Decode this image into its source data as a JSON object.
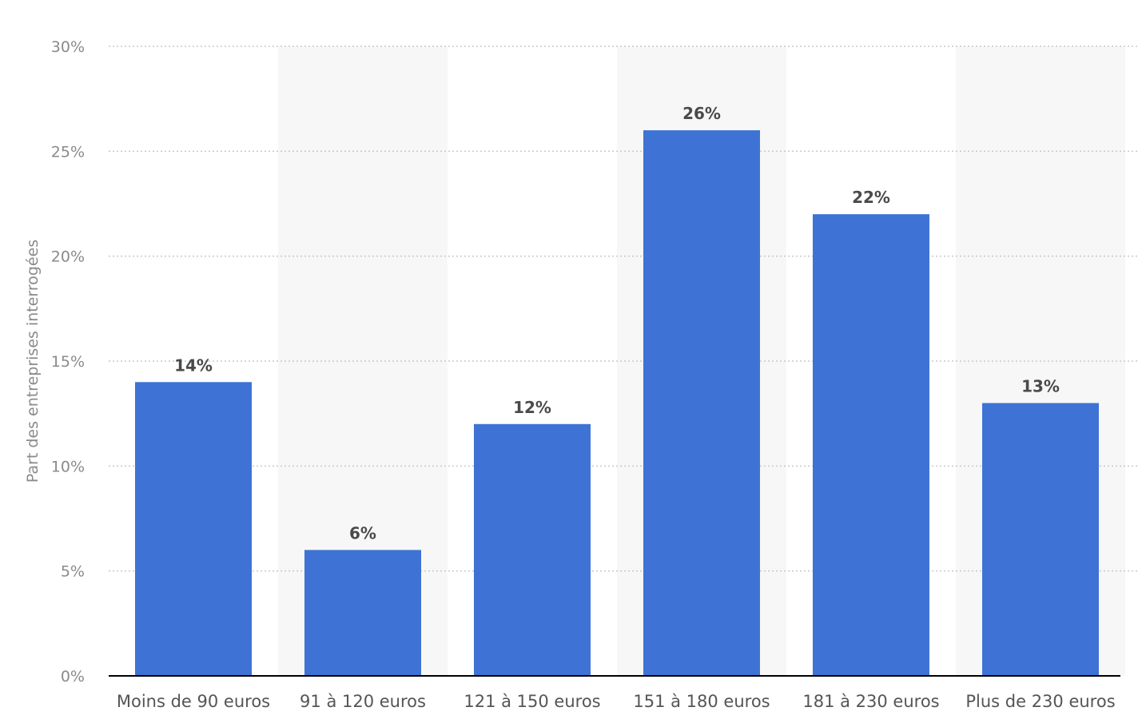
{
  "chart_data": {
    "type": "bar",
    "categories": [
      "Moins de 90 euros",
      "91 à 120 euros",
      "121 à 150 euros",
      "151 à 180 euros",
      "181 à 230 euros",
      "Plus de 230 euros"
    ],
    "values": [
      14,
      6,
      12,
      26,
      22,
      13
    ],
    "value_labels": [
      "14%",
      "6%",
      "12%",
      "26%",
      "22%",
      "13%"
    ],
    "ylabel": "Part des entreprises interrogées",
    "xlabel": "",
    "ylim": [
      0,
      30
    ],
    "yticks": [
      0,
      5,
      10,
      15,
      20,
      25,
      30
    ],
    "ytick_labels": [
      "0%",
      "5%",
      "10%",
      "15%",
      "20%",
      "25%",
      "30%"
    ],
    "grid": true,
    "legend": "none",
    "colors": {
      "bar": "#3e73d5",
      "band": "#f7f7f7",
      "grid": "#c8c8c8",
      "axis": "#000000"
    }
  }
}
